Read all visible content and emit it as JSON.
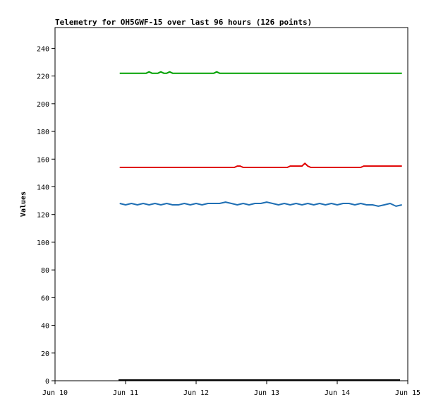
{
  "chart_data": {
    "type": "line",
    "title": "Telemetry for OH5GWF-15 over last 96 hours (126 points)",
    "xlabel": "",
    "ylabel": "Values",
    "x_tick_labels": [
      "Jun 10",
      "Jun 11",
      "Jun 12",
      "Jun 13",
      "Jun 14",
      "Jun 15"
    ],
    "y_ticks": [
      0,
      20,
      40,
      60,
      80,
      100,
      120,
      140,
      160,
      180,
      200,
      220,
      240
    ],
    "xlim": [
      "Jun 10",
      "Jun 15"
    ],
    "ylim": [
      0,
      255
    ],
    "grid": false,
    "legend": "none",
    "series": [
      {
        "color": "#00a000",
        "x": [
          "Jun 10 22:00",
          "Jun 11 07:00",
          "Jun 11 08:00",
          "Jun 11 09:00",
          "Jun 11 11:00",
          "Jun 11 12:00",
          "Jun 11 13:00",
          "Jun 11 14:00",
          "Jun 11 15:00",
          "Jun 11 16:00",
          "Jun 12 06:00",
          "Jun 12 07:00",
          "Jun 12 08:00",
          "Jun 14 22:00"
        ],
        "values": [
          222,
          222,
          223,
          222,
          222,
          223,
          222,
          222,
          223,
          222,
          222,
          223,
          222,
          222
        ]
      },
      {
        "color": "#e00000",
        "x": [
          "Jun 10 22:00",
          "Jun 12 13:00",
          "Jun 12 14:00",
          "Jun 12 15:00",
          "Jun 12 16:00",
          "Jun 13 07:00",
          "Jun 13 08:00",
          "Jun 13 12:00",
          "Jun 13 13:00",
          "Jun 13 14:00",
          "Jun 13 15:00",
          "Jun 13 16:00",
          "Jun 14 08:00",
          "Jun 14 09:00",
          "Jun 14 22:00"
        ],
        "values": [
          154,
          154,
          155,
          155,
          154,
          154,
          155,
          155,
          157,
          155,
          154,
          154,
          154,
          155,
          155
        ]
      },
      {
        "color": "#1f6fb4",
        "x": [
          "Jun 10 22:00",
          "Jun 11 00:00",
          "Jun 11 02:00",
          "Jun 11 04:00",
          "Jun 11 06:00",
          "Jun 11 08:00",
          "Jun 11 10:00",
          "Jun 11 12:00",
          "Jun 11 14:00",
          "Jun 11 16:00",
          "Jun 11 18:00",
          "Jun 11 20:00",
          "Jun 11 22:00",
          "Jun 12 00:00",
          "Jun 12 02:00",
          "Jun 12 04:00",
          "Jun 12 06:00",
          "Jun 12 08:00",
          "Jun 12 10:00",
          "Jun 12 12:00",
          "Jun 12 14:00",
          "Jun 12 16:00",
          "Jun 12 18:00",
          "Jun 12 20:00",
          "Jun 12 22:00",
          "Jun 13 00:00",
          "Jun 13 02:00",
          "Jun 13 04:00",
          "Jun 13 06:00",
          "Jun 13 08:00",
          "Jun 13 10:00",
          "Jun 13 12:00",
          "Jun 13 14:00",
          "Jun 13 16:00",
          "Jun 13 18:00",
          "Jun 13 20:00",
          "Jun 13 22:00",
          "Jun 14 00:00",
          "Jun 14 02:00",
          "Jun 14 04:00",
          "Jun 14 06:00",
          "Jun 14 08:00",
          "Jun 14 10:00",
          "Jun 14 12:00",
          "Jun 14 14:00",
          "Jun 14 16:00",
          "Jun 14 18:00",
          "Jun 14 20:00",
          "Jun 14 22:00"
        ],
        "values": [
          128,
          127,
          128,
          127,
          128,
          127,
          128,
          127,
          128,
          127,
          127,
          128,
          127,
          128,
          127,
          128,
          128,
          128,
          129,
          128,
          127,
          128,
          127,
          128,
          128,
          129,
          128,
          127,
          128,
          127,
          128,
          127,
          128,
          127,
          128,
          127,
          128,
          127,
          128,
          128,
          127,
          128,
          127,
          127,
          126,
          127,
          128,
          126,
          127
        ]
      }
    ]
  }
}
